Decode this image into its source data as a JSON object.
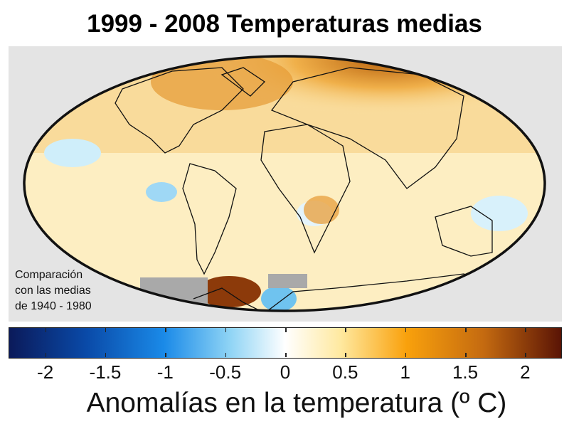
{
  "title": "1999 - 2008 Temperaturas medias",
  "note": [
    "Comparación",
    "con las medias",
    "de 1940 - 1980"
  ],
  "colorbar": {
    "label": "Anomalías en la temperatura (º C)",
    "range": [
      -2.3,
      2.3
    ],
    "ticks": [
      "-2",
      "-1.5",
      "-1",
      "-0.5",
      "0",
      "0.5",
      "1",
      "1.5",
      "2"
    ],
    "tick_values": [
      -2,
      -1.5,
      -1,
      -0.5,
      0,
      0.5,
      1,
      1.5,
      2
    ],
    "colors": [
      "#0b1a5a",
      "#1a8ae8",
      "#ffffff",
      "#f9a10c",
      "#5a1405"
    ]
  }
}
